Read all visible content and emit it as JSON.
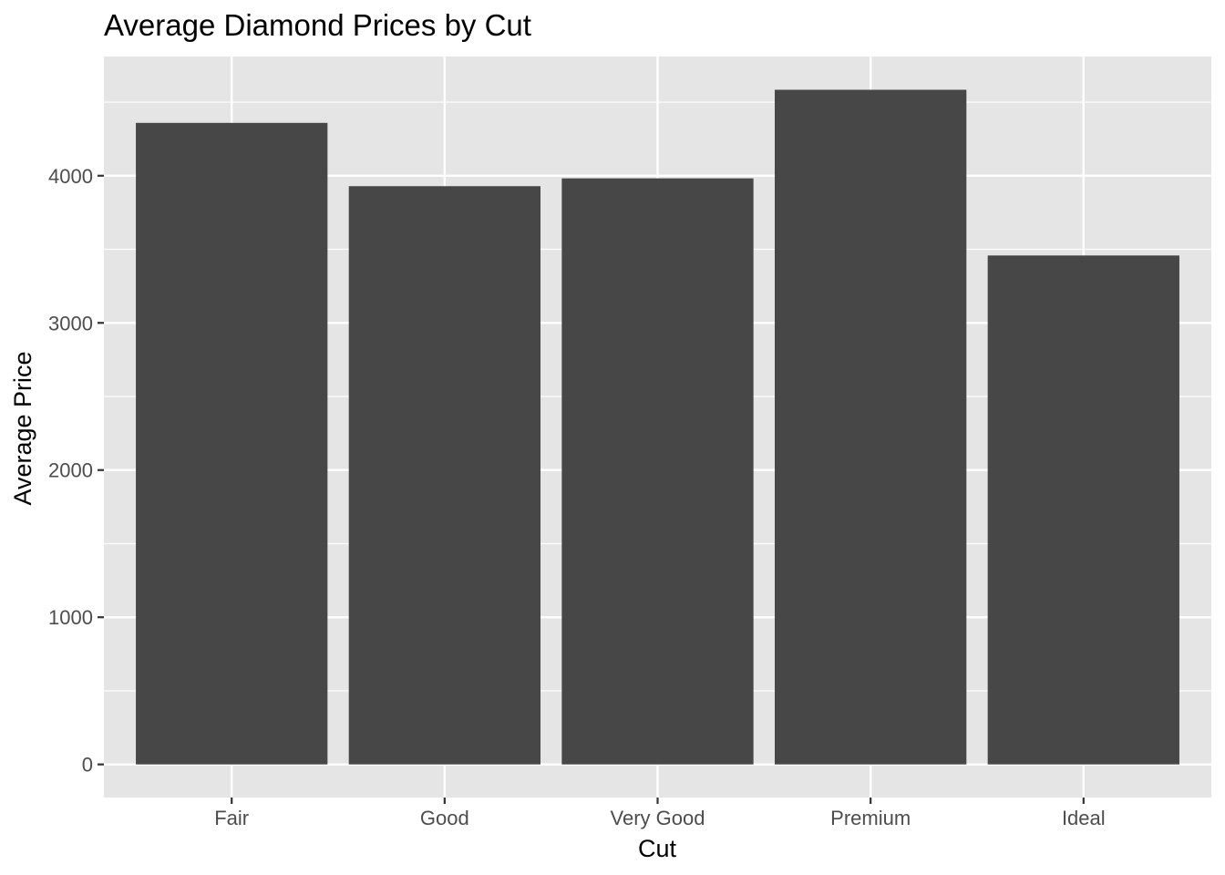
{
  "chart_data": {
    "type": "bar",
    "title": "Average Diamond Prices by Cut",
    "xlabel": "Cut",
    "ylabel": "Average Price",
    "categories": [
      "Fair",
      "Good",
      "Very Good",
      "Premium",
      "Ideal"
    ],
    "values": [
      4359,
      3929,
      3982,
      4584,
      3458
    ],
    "ylim": [
      -225,
      4810
    ],
    "yticks": [
      0,
      1000,
      2000,
      3000,
      4000
    ],
    "ytick_labels": [
      "0",
      "1000",
      "2000",
      "3000",
      "4000"
    ],
    "grid": true,
    "legend": "none",
    "colors": {
      "bar": "#474747",
      "panel_background": "#e5e5e5",
      "grid": "#ffffff",
      "tick": "#333333"
    }
  }
}
